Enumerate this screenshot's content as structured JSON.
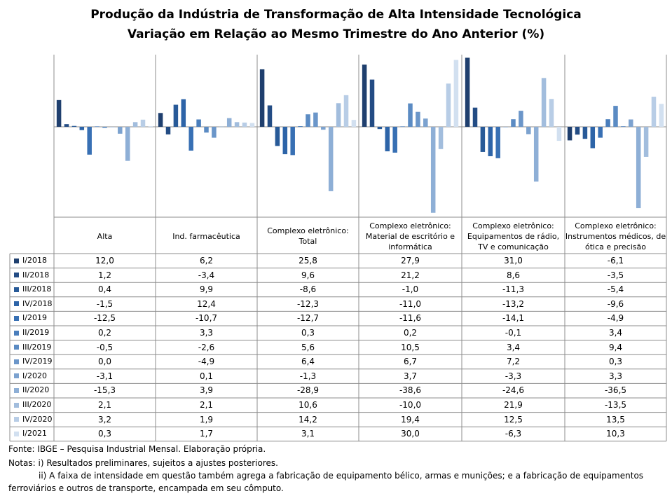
{
  "chart_data": {
    "type": "bar",
    "title": "Produção da Indústria de Transformação de Alta Intensidade Tecnológica",
    "subtitle": "Variação em Relação ao Mesmo Trimestre do Ano Anterior (%)",
    "ylim": [
      -40,
      32
    ],
    "categories": [
      "Alta",
      "Ind. farmacêutica",
      "Complexo eletrônico:\nTotal",
      "Complexo eletrônico:\nMaterial de escritório e\ninformática",
      "Complexo eletrônico:\nEquipamentos de rádio,\nTV e comunicação",
      "Complexo eletrônico:\nInstrumentos médicos, de\nótica e precisão"
    ],
    "series": [
      {
        "name": "I/2018",
        "color": "#1f3f6e",
        "values": [
          "12,0",
          "6,2",
          "25,8",
          "27,9",
          "31,0",
          "-6,1"
        ]
      },
      {
        "name": "II/2018",
        "color": "#234c84",
        "values": [
          "1,2",
          "-3,4",
          "9,6",
          "21,2",
          "8,6",
          "-3,5"
        ]
      },
      {
        "name": "III/2018",
        "color": "#285a98",
        "values": [
          "0,4",
          "9,9",
          "-8,6",
          "-1,0",
          "-11,3",
          "-5,4"
        ]
      },
      {
        "name": "IV/2018",
        "color": "#2d64a8",
        "values": [
          "-1,5",
          "12,4",
          "-12,3",
          "-11,0",
          "-13,2",
          "-9,6"
        ]
      },
      {
        "name": "I/2019",
        "color": "#3870b4",
        "values": [
          "-12,5",
          "-10,7",
          "-12,7",
          "-11,6",
          "-14,1",
          "-4,9"
        ]
      },
      {
        "name": "II/2019",
        "color": "#4a7ebc",
        "values": [
          "0,2",
          "3,3",
          "0,3",
          "0,2",
          "-0,1",
          "3,4"
        ]
      },
      {
        "name": "III/2019",
        "color": "#5b8bc3",
        "values": [
          "-0,5",
          "-2,6",
          "5,6",
          "10,5",
          "3,4",
          "9,4"
        ]
      },
      {
        "name": "IV/2019",
        "color": "#6b96c9",
        "values": [
          "0,0",
          "-4,9",
          "6,4",
          "6,7",
          "7,2",
          "0,3"
        ]
      },
      {
        "name": "I/2020",
        "color": "#7ca2cf",
        "values": [
          "-3,1",
          "0,1",
          "-1,3",
          "3,7",
          "-3,3",
          "3,3"
        ]
      },
      {
        "name": "II/2020",
        "color": "#8eafd6",
        "values": [
          "-15,3",
          "3,9",
          "-28,9",
          "-38,6",
          "-24,6",
          "-36,5"
        ]
      },
      {
        "name": "III/2020",
        "color": "#a2bddd",
        "values": [
          "2,1",
          "2,1",
          "10,6",
          "-10,0",
          "21,9",
          "-13,5"
        ]
      },
      {
        "name": "IV/2020",
        "color": "#b8cde6",
        "values": [
          "3,2",
          "1,9",
          "14,2",
          "19,4",
          "12,5",
          "13,5"
        ]
      },
      {
        "name": "I/2021",
        "color": "#d2e0f0",
        "values": [
          "0,3",
          "1,7",
          "3,1",
          "30,0",
          "-6,3",
          "10,3"
        ]
      }
    ]
  },
  "notes": {
    "source": "Fonte: IBGE – Pesquisa Industrial Mensal. Elaboração própria.",
    "note1": "Notas: i) Resultados preliminares, sujeitos a ajustes posteriores.",
    "note2a": "ii) A faixa de intensidade em questão também agrega a fabricação de equipamento bélico, armas e munições; e a fabricação de equipamentos",
    "note2b": "ferroviários e outros de transporte, encampada em seu cômputo."
  }
}
